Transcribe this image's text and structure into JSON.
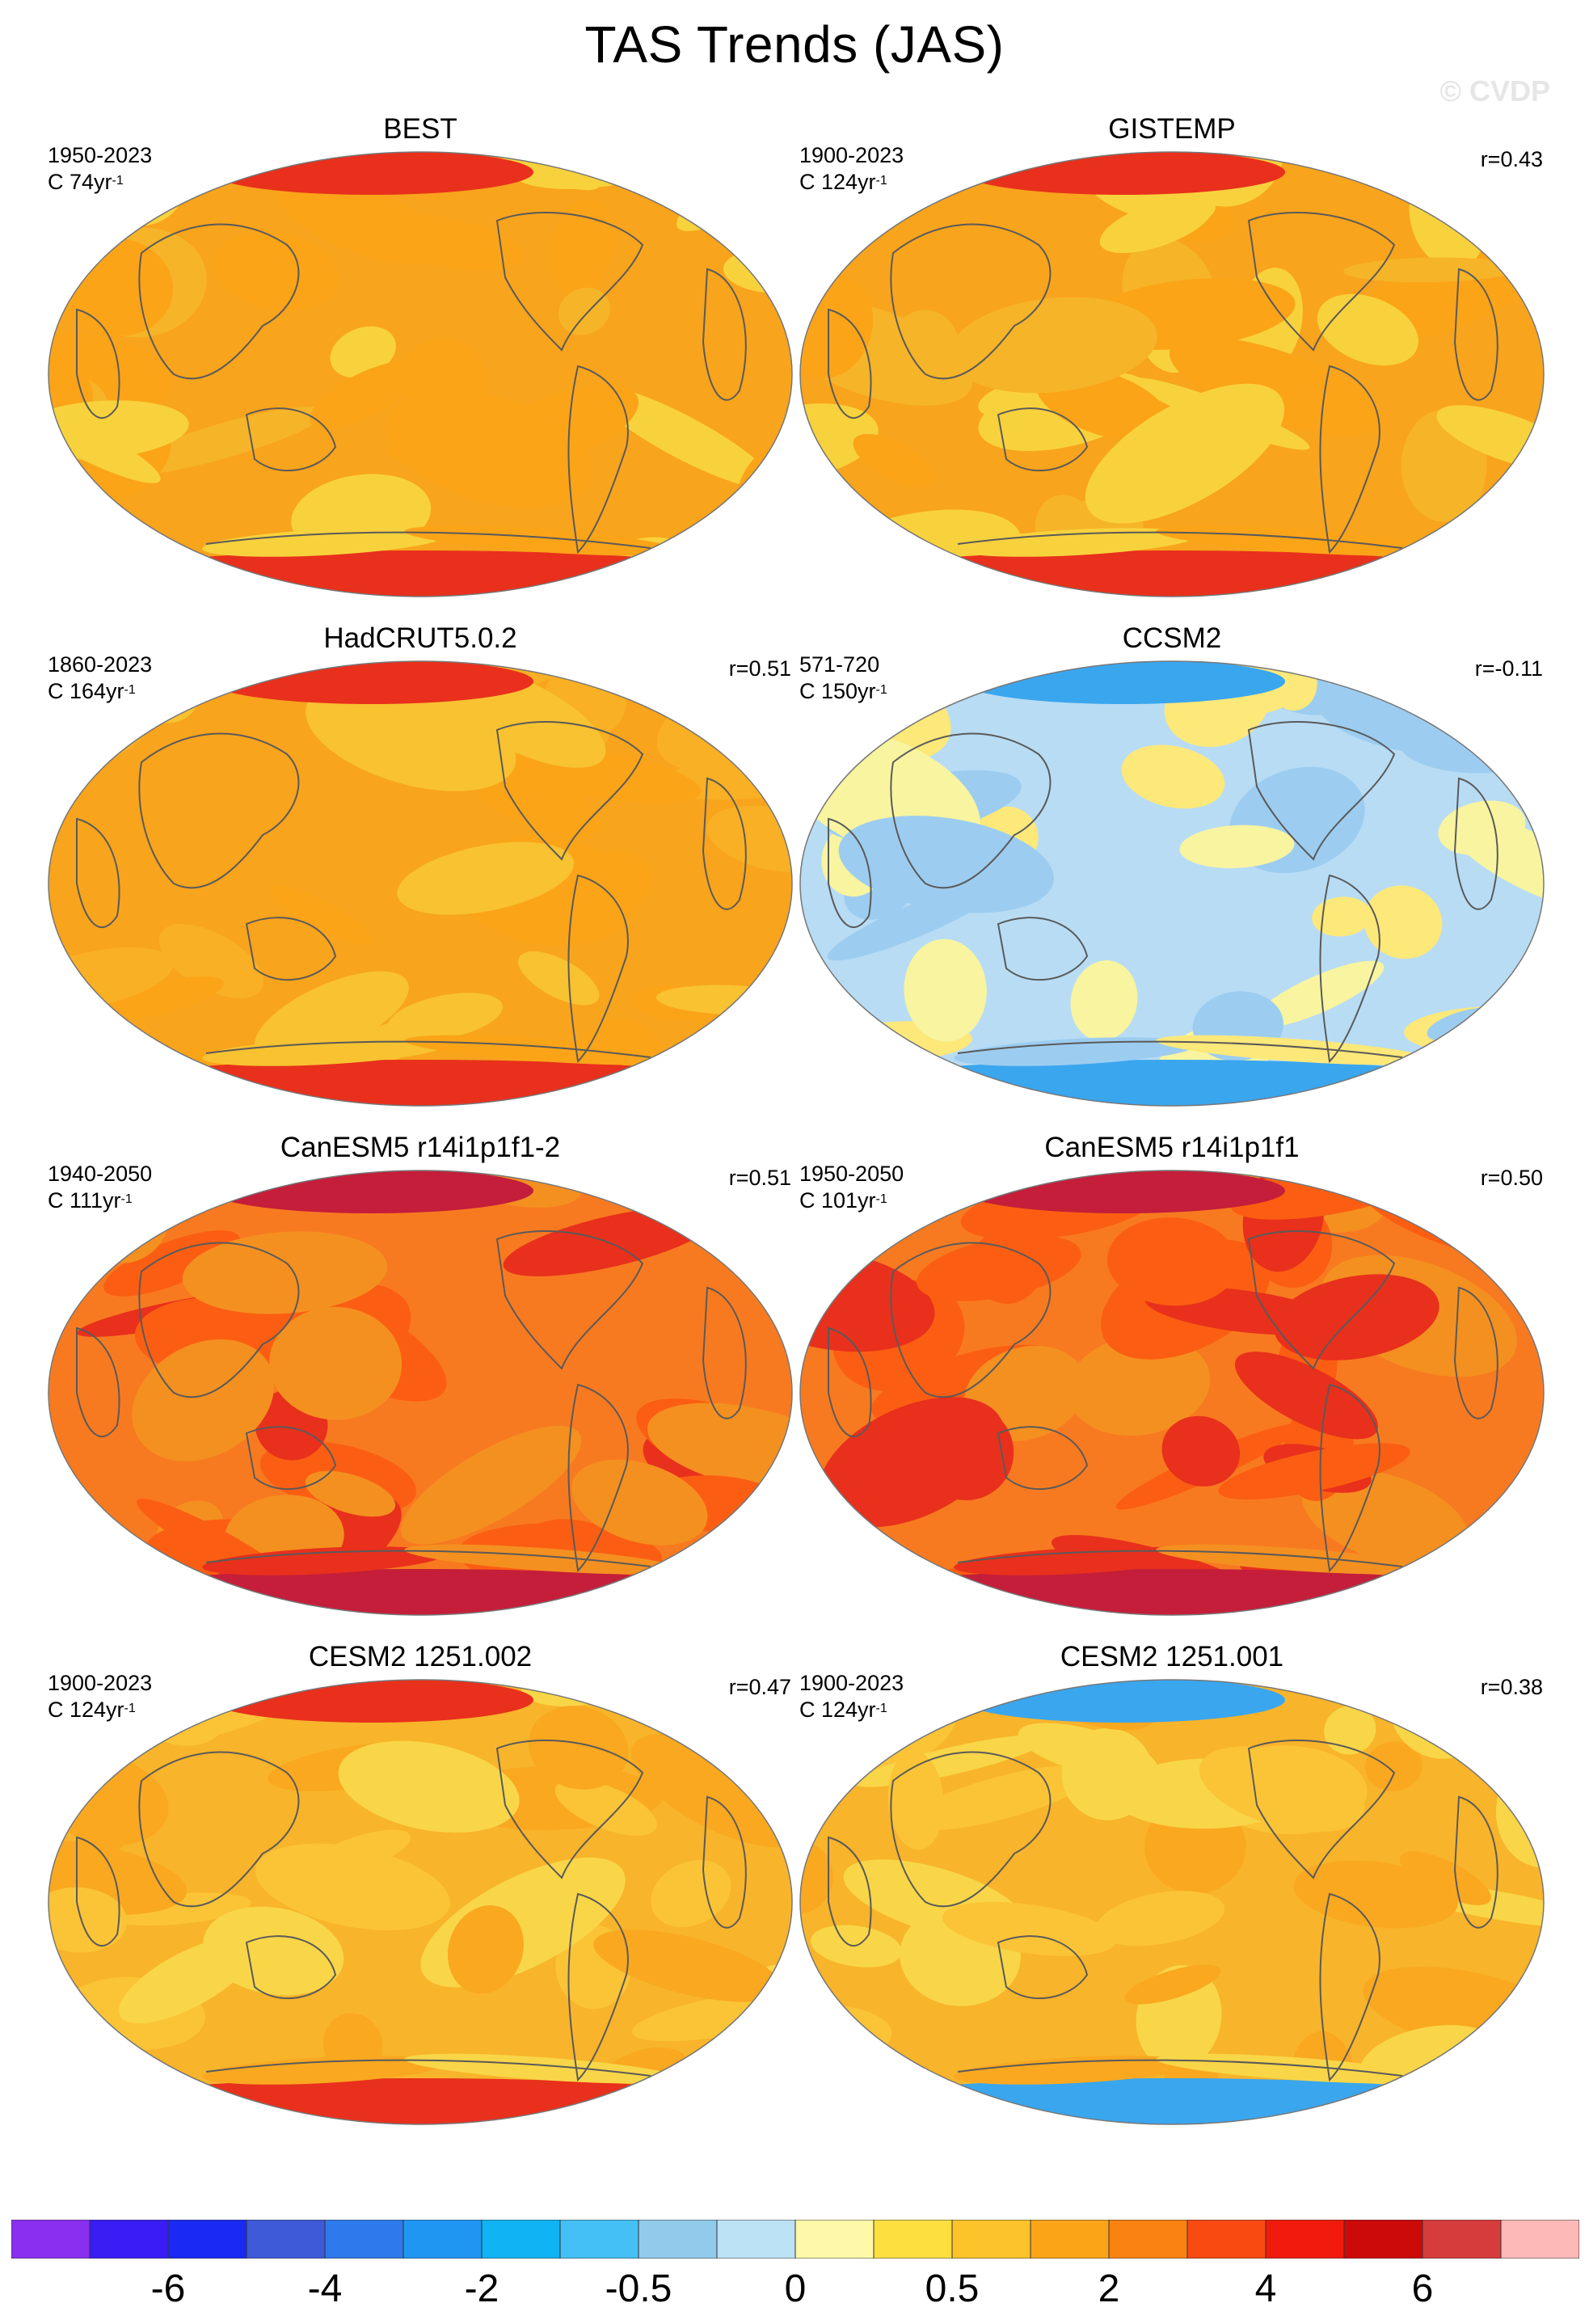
{
  "title": "TAS Trends (JAS)",
  "watermark": "© CVDP",
  "panels": [
    {
      "name": "BEST",
      "period": "1950-2023",
      "trend_unit": "C 74yr",
      "corr": "",
      "palette": [
        "#f8a41c",
        "#f6b428",
        "#f8d23c",
        "#fba418"
      ],
      "accent": "#e8301c"
    },
    {
      "name": "GISTEMP",
      "period": "1900-2023",
      "trend_unit": "C 124yr",
      "corr": "r=0.43",
      "palette": [
        "#f8a41c",
        "#f6b428",
        "#f8d23c",
        "#fba418"
      ],
      "accent": "#e8301c"
    },
    {
      "name": "HadCRUT5.0.2",
      "period": "1860-2023",
      "trend_unit": "C 164yr",
      "corr": "r=0.51",
      "palette": [
        "#f8a41c",
        "#f9b024",
        "#f8c230",
        "#fba418"
      ],
      "accent": "#e8301c"
    },
    {
      "name": "CCSM2",
      "period": "571-720",
      "trend_unit": "C 150yr",
      "corr": "r=-0.11",
      "palette": [
        "#b8dcf4",
        "#f8f4a0",
        "#9ccdf0",
        "#fde87a"
      ],
      "accent": "#3aa6ee"
    },
    {
      "name": "CanESM5 r14i1p1f1-2",
      "period": "1940-2050",
      "trend_unit": "C 111yr",
      "corr": "r=0.51",
      "palette": [
        "#f87a20",
        "#fb5e12",
        "#e8301c",
        "#f49020"
      ],
      "accent": "#c41e3a"
    },
    {
      "name": "CanESM5 r14i1p1f1",
      "period": "1950-2050",
      "trend_unit": "C 101yr",
      "corr": "r=0.50",
      "palette": [
        "#f87a20",
        "#fb5e12",
        "#e8301c",
        "#f49020"
      ],
      "accent": "#c41e3a"
    },
    {
      "name": "CESM2 1251.002",
      "period": "1900-2023",
      "trend_unit": "C 124yr",
      "corr": "r=0.47",
      "palette": [
        "#f8b42a",
        "#fbc436",
        "#f9a820",
        "#f8d648"
      ],
      "accent": "#e8301c"
    },
    {
      "name": "CESM2 1251.001",
      "period": "1900-2023",
      "trend_unit": "C 124yr",
      "corr": "r=0.38",
      "palette": [
        "#f8b42a",
        "#fbc436",
        "#f9a820",
        "#f8d648"
      ],
      "accent": "#3aa6ee"
    }
  ],
  "trend_unit_sup": "-1",
  "colorbar": {
    "colors": [
      "#8a2ef0",
      "#3a1cf4",
      "#1a2af2",
      "#3e5ad8",
      "#2e7aec",
      "#1f96f2",
      "#10b4f4",
      "#44c0f6",
      "#90cbec",
      "#bce2f6",
      "#fef9a8",
      "#fde040",
      "#fcc42a",
      "#fba418",
      "#fa8210",
      "#f94a12",
      "#f11a0c",
      "#cc0a0a",
      "#d73c3c",
      "#fdb8b8"
    ],
    "labels": [
      "-6",
      "-4",
      "-2",
      "-0.5",
      "0",
      "0.5",
      "2",
      "4",
      "6"
    ]
  }
}
